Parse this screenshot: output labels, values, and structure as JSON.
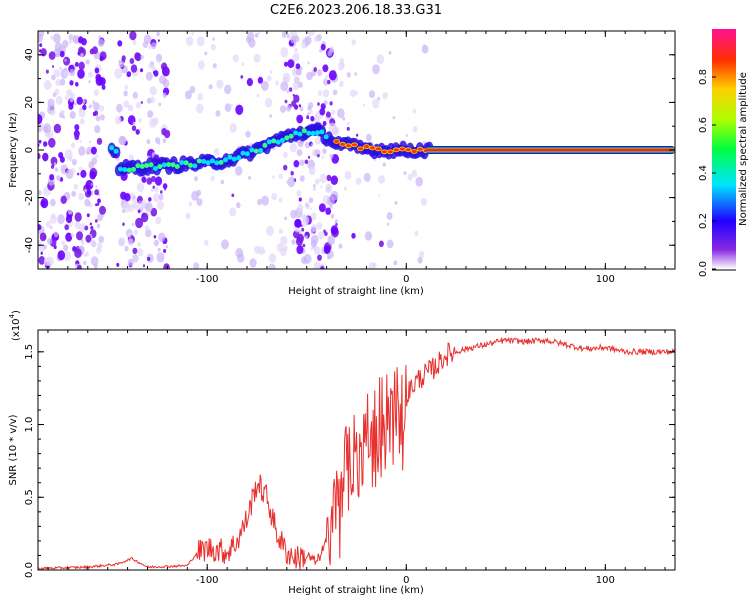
{
  "title": "C2E6.2023.206.18.33.G31",
  "chart_data": [
    {
      "type": "heatmap",
      "xlabel": "Height of straight line (km)",
      "ylabel": "Frequency (Hz)",
      "xlim": [
        -185,
        135
      ],
      "ylim": [
        -50,
        50
      ],
      "xticks": [
        -100,
        0,
        100
      ],
      "xtick_labels": [
        "-100",
        "0",
        "100"
      ],
      "yticks": [
        -40,
        -20,
        0,
        20,
        40
      ],
      "ytick_labels": [
        "-40",
        "-20",
        "0",
        "20",
        "40"
      ],
      "colorbar": {
        "label": "Normalized spectral amplitude",
        "range": [
          0.0,
          1.0
        ],
        "ticks": [
          0.0,
          0.2,
          0.4,
          0.6,
          0.8
        ],
        "tick_labels": [
          "0.0",
          "0.2",
          "0.4",
          "0.6",
          "0.8"
        ]
      },
      "ridge": {
        "description_points": [
          {
            "x": -145,
            "y": -8
          },
          {
            "x": -130,
            "y": -7
          },
          {
            "x": -110,
            "y": -6
          },
          {
            "x": -95,
            "y": -5
          },
          {
            "x": -85,
            "y": -3
          },
          {
            "x": -75,
            "y": 0
          },
          {
            "x": -65,
            "y": 4
          },
          {
            "x": -55,
            "y": 7
          },
          {
            "x": -45,
            "y": 8
          },
          {
            "x": -35,
            "y": 3
          },
          {
            "x": -25,
            "y": 1
          },
          {
            "x": -15,
            "y": 0
          },
          {
            "x": 0,
            "y": 0
          },
          {
            "x": 10,
            "y": 0
          },
          {
            "x": 135,
            "y": 0
          }
        ]
      },
      "grid": false
    },
    {
      "type": "line",
      "xlabel": "Height of straight line (km)",
      "ylabel": "SNR (10 * v/v)",
      "y_multiplier": "(x10",
      "y_multiplier_exp": "4",
      "y_multiplier_close": ")",
      "xlim": [
        -185,
        135
      ],
      "ylim": [
        0,
        1.65
      ],
      "xticks": [
        -100,
        0,
        100
      ],
      "xtick_labels": [
        "-100",
        "0",
        "100"
      ],
      "yticks": [
        0,
        0.5,
        1.0,
        1.5
      ],
      "ytick_labels": [
        "0.0",
        "0.5",
        "1.0",
        "1.5"
      ],
      "grid": false,
      "series": [
        {
          "color": "#e8302e",
          "x": [
            -185,
            -160,
            -145,
            -138,
            -130,
            -110,
            -105,
            -100,
            -95,
            -90,
            -85,
            -80,
            -75,
            -70,
            -65,
            -60,
            -55,
            -50,
            -45,
            -40,
            -35,
            -30,
            -25,
            -20,
            -15,
            -10,
            -5,
            0,
            5,
            10,
            15,
            20,
            30,
            40,
            50,
            60,
            70,
            80,
            90,
            100,
            110,
            120,
            135
          ],
          "y": [
            0.01,
            0.02,
            0.04,
            0.08,
            0.02,
            0.03,
            0.12,
            0.15,
            0.14,
            0.12,
            0.2,
            0.35,
            0.6,
            0.5,
            0.25,
            0.12,
            0.08,
            0.1,
            0.05,
            0.2,
            0.5,
            0.75,
            0.85,
            1.0,
            1.05,
            1.1,
            1.15,
            1.2,
            1.3,
            1.35,
            1.4,
            1.48,
            1.52,
            1.55,
            1.58,
            1.57,
            1.58,
            1.55,
            1.52,
            1.53,
            1.5,
            1.5,
            1.5
          ]
        }
      ]
    }
  ]
}
